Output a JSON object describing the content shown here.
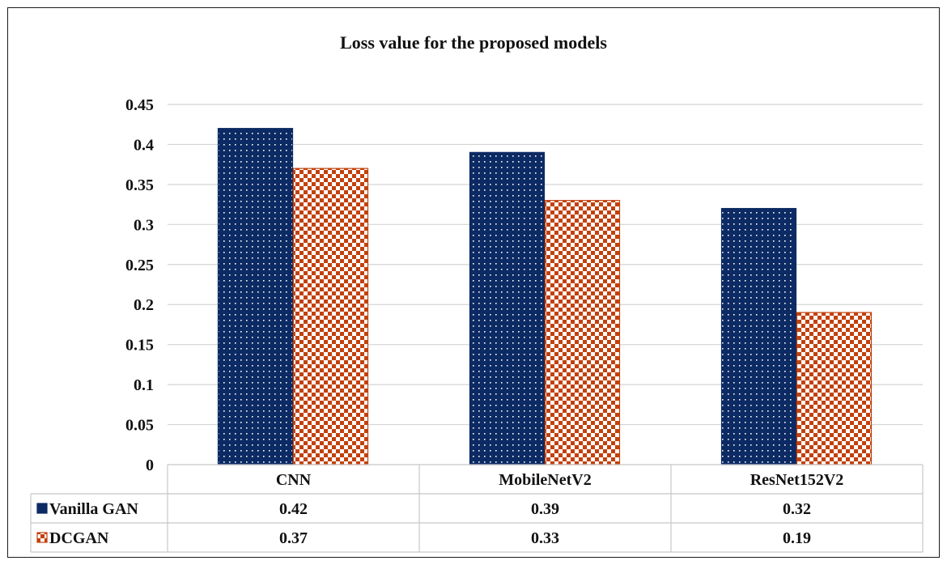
{
  "chart_data": {
    "type": "bar",
    "title": "Loss value for the proposed models",
    "categories": [
      "CNN",
      "MobileNetV2",
      "ResNet152V2"
    ],
    "series": [
      {
        "name": "Vanilla GAN",
        "values": [
          0.42,
          0.39,
          0.32
        ],
        "value_labels": [
          "0.42",
          "0.39",
          "0.32"
        ],
        "color": "#0c2a63",
        "pattern": "dots"
      },
      {
        "name": "DCGAN",
        "values": [
          0.37,
          0.33,
          0.19
        ],
        "value_labels": [
          "0.37",
          "0.33",
          "0.19"
        ],
        "color": "#c2410c",
        "pattern": "checker"
      }
    ],
    "ylim": [
      0,
      0.45
    ],
    "yticks": [
      0,
      0.05,
      0.1,
      0.15,
      0.2,
      0.25,
      0.3,
      0.35,
      0.4,
      0.45
    ],
    "ytick_labels": [
      "0",
      "0.05",
      "0.1",
      "0.15",
      "0.2",
      "0.25",
      "0.3",
      "0.35",
      "0.4",
      "0.45"
    ],
    "grid": true,
    "legend": "data-table",
    "data_table": true
  }
}
